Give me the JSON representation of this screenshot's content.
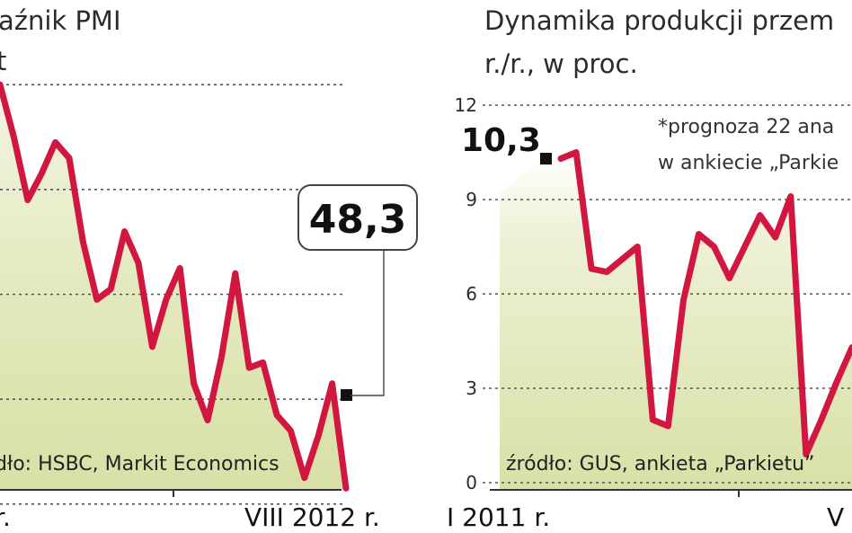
{
  "chart_data": [
    {
      "type": "area",
      "title": "aźnik PMI",
      "title_extra": "t",
      "source": "dło: HSBC, Markit Economics",
      "x_axis_labels": [
        "r.",
        "VIII 2012 r."
      ],
      "callout": "48,3",
      "ylim": [
        47.5,
        56.5
      ],
      "grid_values": [
        48,
        50,
        52,
        54,
        56
      ],
      "y": [
        56.0,
        55.0,
        53.8,
        54.3,
        54.9,
        54.6,
        53.0,
        51.9,
        52.1,
        53.2,
        52.6,
        51.0,
        51.9,
        52.5,
        50.3,
        49.6,
        50.8,
        52.4,
        50.6,
        50.7,
        49.7,
        49.4,
        48.5,
        49.3,
        50.3,
        48.3
      ],
      "line_color": "#d1163f",
      "fill_color": "#dfe6b4"
    },
    {
      "type": "area",
      "title": "Dynamika produkcji przem",
      "subtitle": "r./r., w proc.",
      "yticks": [
        0,
        3,
        6,
        9,
        12
      ],
      "ylim": [
        0,
        12
      ],
      "start_label": "10,3",
      "note_lines": [
        "*prognoza 22 ana",
        "w ankiecie „Parkie"
      ],
      "source": "źródło: GUS, ankieta „Parkietu”",
      "x_axis_labels": [
        "I 2011 r.",
        "V"
      ],
      "y": [
        10.3,
        10.5,
        6.8,
        6.7,
        7.1,
        7.5,
        2.0,
        1.8,
        5.8,
        7.9,
        7.5,
        6.5,
        7.5,
        8.5,
        7.8,
        9.1,
        0.9,
        2.0,
        3.2,
        4.3
      ],
      "line_color": "#d1163f",
      "fill_color": "#dfe6b4"
    }
  ]
}
